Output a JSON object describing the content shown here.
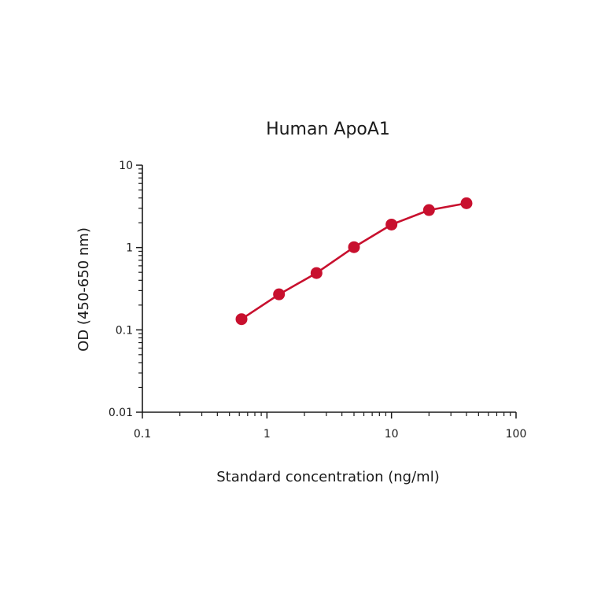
{
  "colors": {
    "series": "#c8102e",
    "axis": "#1a1a1a",
    "background": "#ffffff"
  },
  "chart_data": {
    "type": "line",
    "title": "Human ApoA1",
    "xlabel": "Standard concentration (ng/ml)",
    "ylabel": "OD (450-650 nm)",
    "xscale": "log",
    "yscale": "log",
    "xlim": [
      0.1,
      100
    ],
    "ylim": [
      0.01,
      10
    ],
    "grid": false,
    "legend": "none",
    "x_ticks": [
      "0.1",
      "1",
      "10",
      "100"
    ],
    "y_ticks": [
      "0.01",
      "0.1",
      "1",
      "10"
    ],
    "series": [
      {
        "x": [
          0.625,
          1.25,
          2.5,
          5,
          10,
          20,
          40
        ],
        "y": [
          0.135,
          0.27,
          0.49,
          1.01,
          1.9,
          2.85,
          3.45
        ]
      }
    ]
  }
}
